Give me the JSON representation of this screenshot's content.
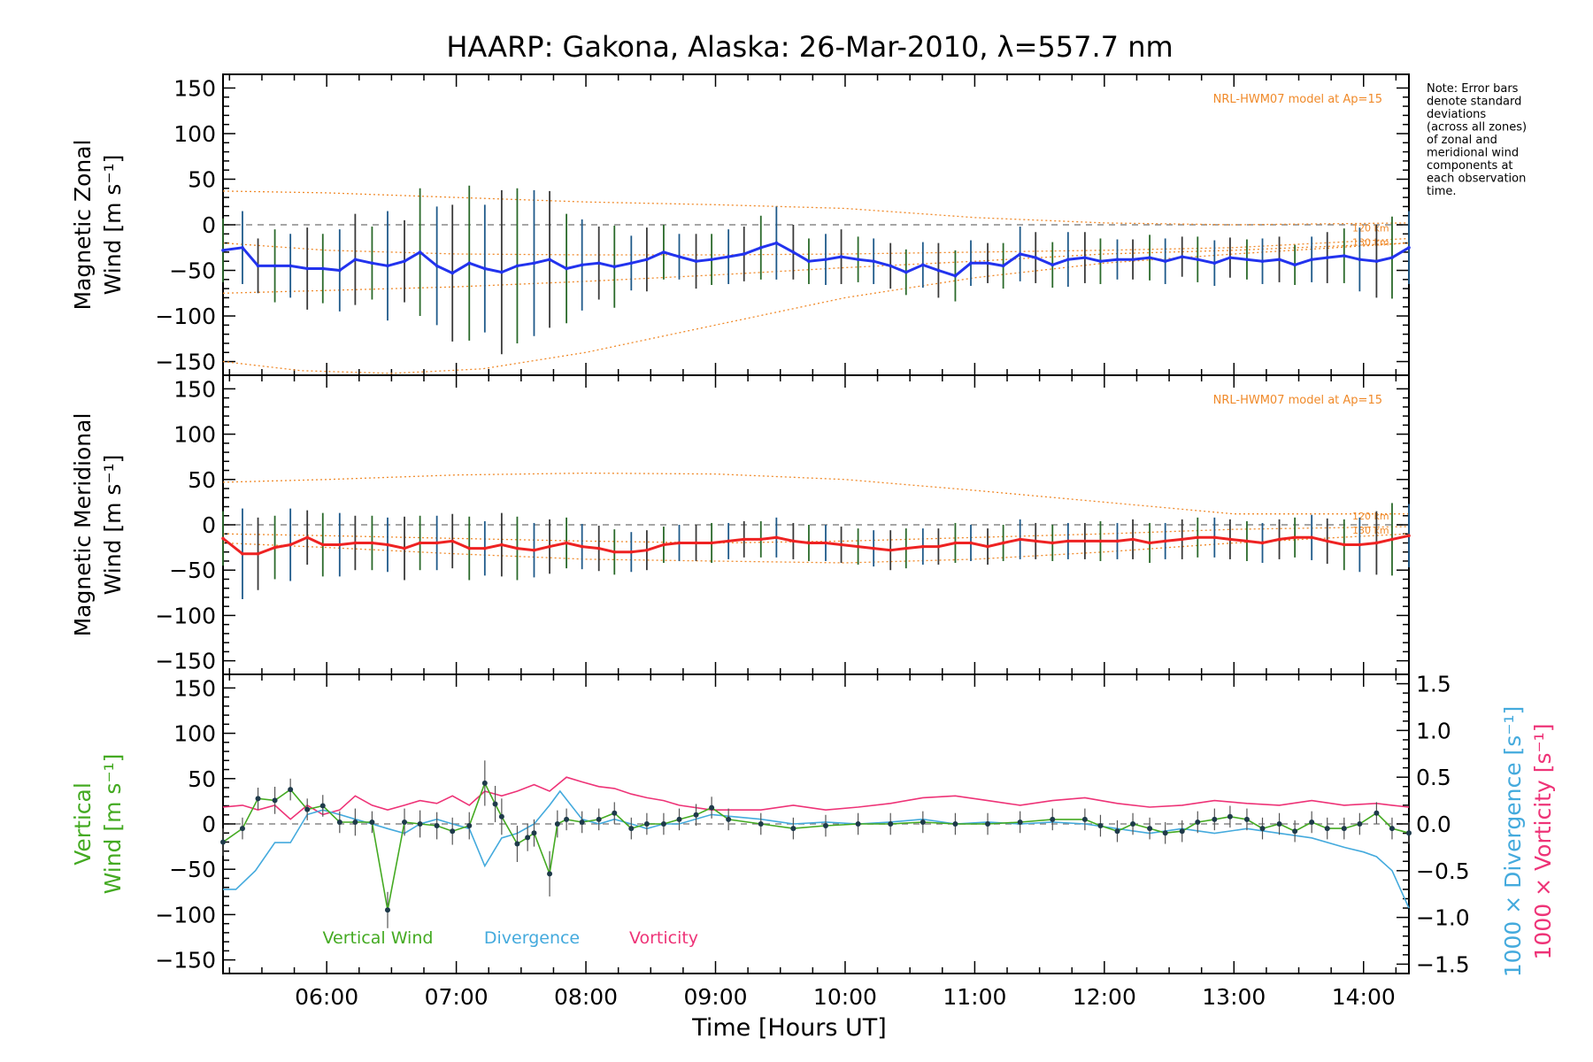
{
  "page": {
    "title": "HAARP: Gakona,  Alaska: 26-Mar-2010, λ=557.7 nm",
    "note": [
      "Note: Error bars",
      "denote standard",
      "deviations",
      "(across all zones)",
      "of zonal and",
      "meridional wind",
      "components at",
      "each observation",
      "time."
    ]
  },
  "chart_data": [
    {
      "type": "line",
      "panel": "zonal",
      "ylabel": [
        "Magnetic Zonal",
        "Wind [m s⁻¹]"
      ],
      "ylim": [
        -165,
        165
      ],
      "yticks": [
        150,
        100,
        50,
        0,
        -50,
        -100,
        -150
      ],
      "xlim": [
        5.2,
        14.35
      ],
      "model_label": "NRL-HWM07 model at Ap=15",
      "model_alt_labels": [
        "120 km",
        "130 km"
      ],
      "mean_color": "#2233ee",
      "x": [
        5.2,
        5.35,
        5.47,
        5.6,
        5.72,
        5.85,
        5.97,
        6.1,
        6.22,
        6.35,
        6.47,
        6.6,
        6.72,
        6.85,
        6.97,
        7.1,
        7.22,
        7.35,
        7.47,
        7.6,
        7.72,
        7.85,
        7.97,
        8.1,
        8.22,
        8.35,
        8.47,
        8.6,
        8.72,
        8.85,
        8.97,
        9.1,
        9.22,
        9.35,
        9.47,
        9.6,
        9.72,
        9.85,
        9.97,
        10.1,
        10.22,
        10.35,
        10.47,
        10.6,
        10.72,
        10.85,
        10.97,
        11.1,
        11.22,
        11.35,
        11.47,
        11.6,
        11.72,
        11.85,
        11.97,
        12.1,
        12.22,
        12.35,
        12.47,
        12.6,
        12.72,
        12.85,
        12.97,
        13.1,
        13.22,
        13.35,
        13.47,
        13.6,
        13.72,
        13.85,
        13.97,
        14.1,
        14.22,
        14.35
      ],
      "mean": [
        -28,
        -25,
        -45,
        -45,
        -45,
        -48,
        -48,
        -50,
        -38,
        -42,
        -45,
        -40,
        -30,
        -45,
        -53,
        -42,
        -48,
        -52,
        -45,
        -42,
        -38,
        -48,
        -44,
        -42,
        -46,
        -42,
        -38,
        -30,
        -35,
        -40,
        -38,
        -35,
        -32,
        -25,
        -20,
        -30,
        -40,
        -38,
        -35,
        -38,
        -40,
        -45,
        -52,
        -44,
        -50,
        -56,
        -42,
        -42,
        -45,
        -32,
        -36,
        -44,
        -38,
        -36,
        -40,
        -38,
        -38,
        -36,
        -40,
        -35,
        -38,
        -42,
        -36,
        -38,
        -40,
        -38,
        -44,
        -38,
        -36,
        -34,
        -38,
        -40,
        -36,
        -25
      ],
      "err": [
        35,
        40,
        30,
        40,
        35,
        45,
        38,
        45,
        50,
        40,
        60,
        45,
        70,
        65,
        75,
        85,
        70,
        90,
        85,
        80,
        75,
        60,
        50,
        40,
        45,
        30,
        35,
        30,
        25,
        30,
        28,
        30,
        30,
        35,
        40,
        30,
        25,
        28,
        30,
        25,
        25,
        25,
        25,
        25,
        30,
        28,
        25,
        22,
        25,
        30,
        28,
        25,
        30,
        28,
        25,
        22,
        22,
        25,
        25,
        22,
        25,
        25,
        22,
        22,
        25,
        25,
        22,
        25,
        28,
        30,
        35,
        40,
        45,
        40
      ],
      "model_curves": [
        {
          "name": "model-upper",
          "x": [
            5.2,
            6.0,
            7.0,
            8.0,
            9.0,
            10.0,
            11.0,
            12.0,
            13.0,
            14.35
          ],
          "y": [
            37,
            35,
            30,
            25,
            22,
            18,
            8,
            2,
            0,
            2
          ]
        },
        {
          "name": "model-mid",
          "x": [
            5.2,
            6.0,
            7.0,
            8.0,
            9.0,
            10.0,
            11.0,
            12.0,
            13.0,
            14.35
          ],
          "y": [
            -20,
            -28,
            -32,
            -33,
            -33,
            -32,
            -30,
            -28,
            -25,
            -15
          ]
        },
        {
          "name": "model-lower",
          "x": [
            5.2,
            6.0,
            7.0,
            8.0,
            9.0,
            10.0,
            11.0,
            12.0,
            13.0,
            14.35
          ],
          "y": [
            -75,
            -72,
            -68,
            -62,
            -55,
            -47,
            -40,
            -32,
            -28,
            -20
          ]
        },
        {
          "name": "model-bottom",
          "x": [
            5.2,
            5.8,
            6.5,
            7.2,
            8.0,
            9.0,
            10.0,
            11.0,
            12.0,
            13.0,
            14.35
          ],
          "y": [
            -150,
            -160,
            -163,
            -158,
            -140,
            -110,
            -80,
            -58,
            -42,
            -32,
            -20
          ]
        }
      ]
    },
    {
      "type": "line",
      "panel": "meridional",
      "ylabel": [
        "Magnetic Meridional",
        "Wind [m s⁻¹]"
      ],
      "ylim": [
        -165,
        165
      ],
      "yticks": [
        150,
        100,
        50,
        0,
        -50,
        -100,
        -150
      ],
      "xlim": [
        5.2,
        14.35
      ],
      "model_label": "NRL-HWM07 model at Ap=15",
      "model_alt_labels": [
        "120 km",
        "130 km"
      ],
      "mean_color": "#ee2222",
      "x": [
        5.2,
        5.35,
        5.47,
        5.6,
        5.72,
        5.85,
        5.97,
        6.1,
        6.22,
        6.35,
        6.47,
        6.6,
        6.72,
        6.85,
        6.97,
        7.1,
        7.22,
        7.35,
        7.47,
        7.6,
        7.72,
        7.85,
        7.97,
        8.1,
        8.22,
        8.35,
        8.47,
        8.6,
        8.72,
        8.85,
        8.97,
        9.1,
        9.22,
        9.35,
        9.47,
        9.6,
        9.72,
        9.85,
        9.97,
        10.1,
        10.22,
        10.35,
        10.47,
        10.6,
        10.72,
        10.85,
        10.97,
        11.1,
        11.22,
        11.35,
        11.47,
        11.6,
        11.72,
        11.85,
        11.97,
        12.1,
        12.22,
        12.35,
        12.47,
        12.6,
        12.72,
        12.85,
        12.97,
        13.1,
        13.22,
        13.35,
        13.47,
        13.6,
        13.72,
        13.85,
        13.97,
        14.1,
        14.22,
        14.35
      ],
      "mean": [
        -15,
        -32,
        -32,
        -25,
        -22,
        -14,
        -22,
        -22,
        -20,
        -20,
        -22,
        -26,
        -20,
        -20,
        -18,
        -26,
        -26,
        -22,
        -26,
        -28,
        -24,
        -20,
        -24,
        -26,
        -30,
        -30,
        -28,
        -22,
        -20,
        -20,
        -20,
        -18,
        -16,
        -16,
        -14,
        -18,
        -20,
        -20,
        -22,
        -24,
        -26,
        -28,
        -26,
        -24,
        -24,
        -20,
        -20,
        -24,
        -20,
        -16,
        -18,
        -20,
        -18,
        -18,
        -18,
        -18,
        -16,
        -20,
        -18,
        -16,
        -14,
        -14,
        -16,
        -18,
        -20,
        -16,
        -14,
        -14,
        -18,
        -22,
        -22,
        -20,
        -16,
        -12
      ],
      "err": [
        30,
        50,
        40,
        35,
        40,
        30,
        35,
        35,
        30,
        30,
        30,
        35,
        30,
        30,
        30,
        35,
        30,
        35,
        35,
        30,
        30,
        28,
        25,
        25,
        25,
        22,
        22,
        20,
        20,
        20,
        22,
        20,
        20,
        20,
        22,
        20,
        20,
        20,
        20,
        20,
        20,
        22,
        22,
        20,
        20,
        22,
        20,
        20,
        20,
        22,
        20,
        20,
        20,
        20,
        22,
        20,
        22,
        22,
        20,
        22,
        22,
        22,
        22,
        22,
        22,
        22,
        22,
        25,
        25,
        28,
        30,
        35,
        40,
        35
      ],
      "model_curves": [
        {
          "name": "model-upper",
          "x": [
            5.2,
            6.0,
            7.0,
            8.0,
            9.0,
            10.0,
            11.0,
            12.0,
            13.0,
            14.35
          ],
          "y": [
            47,
            50,
            55,
            57,
            56,
            50,
            38,
            25,
            12,
            12
          ]
        },
        {
          "name": "model-mid",
          "x": [
            5.2,
            6.0,
            7.0,
            8.0,
            9.0,
            10.0,
            11.0,
            12.0,
            13.0,
            14.35
          ],
          "y": [
            -10,
            -12,
            -15,
            -18,
            -20,
            -18,
            -14,
            -10,
            -5,
            -2
          ]
        },
        {
          "name": "model-lower",
          "x": [
            5.2,
            6.0,
            7.0,
            8.0,
            9.0,
            10.0,
            11.0,
            12.0,
            13.0,
            14.35
          ],
          "y": [
            -20,
            -25,
            -32,
            -38,
            -40,
            -42,
            -38,
            -30,
            -20,
            -10
          ]
        }
      ]
    },
    {
      "type": "line",
      "panel": "vertical",
      "ylabel": [
        "Vertical",
        "Wind [m s⁻¹]"
      ],
      "ylim": [
        -165,
        165
      ],
      "yticks": [
        150,
        100,
        50,
        0,
        -50,
        -100,
        -150
      ],
      "xlim": [
        5.2,
        14.35
      ],
      "right_ylabel_div": "1000 × Divergence [s⁻¹]",
      "right_ylabel_vort": "1000 × Vorticity [s⁻¹]",
      "right_ylim": [
        -1.6,
        1.6
      ],
      "right_yticks": [
        1.5,
        1.0,
        0.5,
        0.0,
        -0.5,
        -1.0,
        -1.5
      ],
      "right_ytick_labels": [
        "1.5",
        "1.0",
        "0.5",
        "0.0",
        "−0.5",
        "−1.0",
        "−1.5"
      ],
      "xticks": [
        6,
        7,
        8,
        9,
        10,
        11,
        12,
        13,
        14
      ],
      "xtick_labels": [
        "06:00",
        "07:00",
        "08:00",
        "09:00",
        "10:00",
        "11:00",
        "12:00",
        "13:00",
        "14:00"
      ],
      "xlabel": "Time [Hours UT]",
      "colors": {
        "vertical": "#44aa22",
        "divergence": "#44aadd",
        "vorticity": "#ee3377"
      },
      "series": [
        {
          "name": "Vertical Wind",
          "key": "vertical",
          "x": [
            5.2,
            5.35,
            5.47,
            5.6,
            5.72,
            5.85,
            5.97,
            6.1,
            6.22,
            6.35,
            6.47,
            6.6,
            6.72,
            6.85,
            6.97,
            7.1,
            7.22,
            7.3,
            7.35,
            7.47,
            7.55,
            7.6,
            7.72,
            7.78,
            7.85,
            7.97,
            8.1,
            8.22,
            8.35,
            8.47,
            8.6,
            8.72,
            8.85,
            8.97,
            9.1,
            9.35,
            9.6,
            9.85,
            10.1,
            10.35,
            10.6,
            10.85,
            11.1,
            11.35,
            11.6,
            11.85,
            11.97,
            12.1,
            12.22,
            12.35,
            12.47,
            12.6,
            12.72,
            12.85,
            12.97,
            13.1,
            13.22,
            13.35,
            13.47,
            13.6,
            13.72,
            13.85,
            13.97,
            14.1,
            14.22,
            14.35
          ],
          "y": [
            -20,
            -5,
            28,
            26,
            38,
            16,
            20,
            2,
            2,
            2,
            -95,
            2,
            0,
            -2,
            -8,
            -2,
            45,
            22,
            8,
            -22,
            -15,
            -10,
            -55,
            0,
            5,
            2,
            5,
            12,
            -5,
            0,
            0,
            5,
            10,
            18,
            5,
            0,
            -5,
            -2,
            0,
            0,
            2,
            0,
            0,
            2,
            5,
            5,
            -2,
            -8,
            0,
            -5,
            -10,
            -8,
            2,
            5,
            8,
            5,
            -5,
            0,
            -8,
            2,
            -5,
            -5,
            0,
            12,
            -5,
            -10
          ],
          "err": [
            15,
            12,
            12,
            15,
            12,
            12,
            12,
            12,
            15,
            12,
            20,
            15,
            15,
            15,
            15,
            15,
            25,
            20,
            20,
            20,
            15,
            15,
            25,
            15,
            12,
            12,
            12,
            12,
            12,
            12,
            12,
            12,
            12,
            12,
            12,
            12,
            12,
            12,
            12,
            12,
            12,
            12,
            12,
            12,
            12,
            12,
            12,
            12,
            12,
            12,
            12,
            12,
            12,
            12,
            12,
            12,
            12,
            12,
            12,
            12,
            12,
            12,
            12,
            12,
            12,
            12
          ]
        },
        {
          "name": "Divergence",
          "key": "divergence",
          "x": [
            5.2,
            5.3,
            5.45,
            5.6,
            5.72,
            5.85,
            5.97,
            6.1,
            6.22,
            6.35,
            6.47,
            6.6,
            6.72,
            6.85,
            6.97,
            7.1,
            7.22,
            7.35,
            7.47,
            7.6,
            7.72,
            7.8,
            7.97,
            8.1,
            8.22,
            8.35,
            8.47,
            8.6,
            8.72,
            8.97,
            9.35,
            9.6,
            9.85,
            10.1,
            10.35,
            10.6,
            10.85,
            11.1,
            11.35,
            11.6,
            11.85,
            12.1,
            12.35,
            12.6,
            12.85,
            13.1,
            13.35,
            13.6,
            13.85,
            14.0,
            14.1,
            14.22,
            14.35
          ],
          "x_unit": "hours",
          "y": [
            -0.7,
            -0.7,
            -0.5,
            -0.2,
            -0.2,
            0.1,
            0.15,
            0.1,
            0.05,
            0.0,
            -0.05,
            -0.1,
            0.0,
            0.05,
            0.0,
            -0.05,
            -0.45,
            -0.15,
            -0.1,
            0.0,
            0.2,
            0.35,
            0.05,
            0.0,
            0.05,
            0.0,
            -0.05,
            0.0,
            0.0,
            0.1,
            0.05,
            0.0,
            0.02,
            0.0,
            0.02,
            0.05,
            0.0,
            0.02,
            0.0,
            0.02,
            0.0,
            -0.05,
            -0.1,
            -0.05,
            -0.1,
            -0.05,
            -0.1,
            -0.15,
            -0.25,
            -0.3,
            -0.35,
            -0.5,
            -0.9
          ]
        },
        {
          "name": "Vorticity",
          "key": "vorticity",
          "x": [
            5.2,
            5.35,
            5.47,
            5.6,
            5.72,
            5.85,
            5.97,
            6.1,
            6.22,
            6.35,
            6.47,
            6.6,
            6.72,
            6.85,
            6.97,
            7.1,
            7.22,
            7.35,
            7.47,
            7.6,
            7.72,
            7.85,
            7.97,
            8.1,
            8.22,
            8.35,
            8.47,
            8.6,
            8.72,
            8.97,
            9.35,
            9.6,
            9.85,
            10.1,
            10.35,
            10.6,
            10.85,
            11.1,
            11.35,
            11.6,
            11.85,
            12.1,
            12.35,
            12.6,
            12.85,
            13.1,
            13.35,
            13.6,
            13.85,
            14.1,
            14.22,
            14.35
          ],
          "y": [
            0.18,
            0.2,
            0.15,
            0.2,
            0.05,
            0.2,
            0.1,
            0.15,
            0.3,
            0.2,
            0.15,
            0.2,
            0.25,
            0.22,
            0.3,
            0.2,
            0.35,
            0.3,
            0.35,
            0.42,
            0.35,
            0.5,
            0.45,
            0.4,
            0.38,
            0.32,
            0.28,
            0.25,
            0.2,
            0.15,
            0.15,
            0.2,
            0.15,
            0.18,
            0.22,
            0.28,
            0.3,
            0.25,
            0.2,
            0.25,
            0.28,
            0.22,
            0.18,
            0.2,
            0.25,
            0.22,
            0.2,
            0.25,
            0.2,
            0.22,
            0.2,
            0.18
          ]
        }
      ]
    }
  ]
}
